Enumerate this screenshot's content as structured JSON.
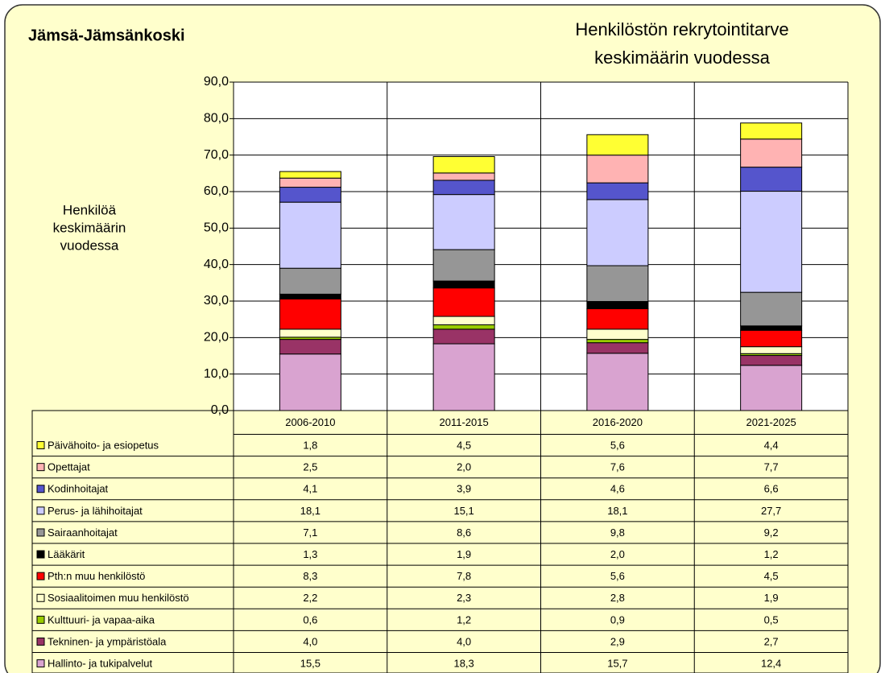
{
  "chart_data": {
    "type": "stacked_bar",
    "title": "Jämsä-Jämsänkoski",
    "subtitle": [
      "Henkilöstön rekrytointitarve",
      "keskimäärin vuodessa"
    ],
    "ylabel": [
      "Henkilöä",
      "keskimäärin",
      "vuodessa"
    ],
    "categories": [
      "2006-2010",
      "2011-2015",
      "2016-2020",
      "2021-2025"
    ],
    "ylim": [
      0,
      90
    ],
    "yticks": [
      {
        "value": 0,
        "label": "0,0"
      },
      {
        "value": 10,
        "label": "10,0"
      },
      {
        "value": 20,
        "label": "20,0"
      },
      {
        "value": 30,
        "label": "30,0"
      },
      {
        "value": 40,
        "label": "40,0"
      },
      {
        "value": 50,
        "label": "50,0"
      },
      {
        "value": 60,
        "label": "60,0"
      },
      {
        "value": 70,
        "label": "70,0"
      },
      {
        "value": 80,
        "label": "80,0"
      },
      {
        "value": 90,
        "label": "90,0"
      }
    ],
    "grid": true,
    "series": [
      {
        "name": "Päivähoito- ja esiopetus",
        "color": "#ffff33",
        "values": [
          1.8,
          4.5,
          5.6,
          4.4
        ],
        "value_labels": [
          "1,8",
          "4,5",
          "5,6",
          "4,4"
        ]
      },
      {
        "name": "Opettajat",
        "color": "#ffb3b3",
        "values": [
          2.5,
          2.0,
          7.6,
          7.7
        ],
        "value_labels": [
          "2,5",
          "2,0",
          "7,6",
          "7,7"
        ]
      },
      {
        "name": "Kodinhoitajat",
        "color": "#5555cc",
        "values": [
          4.1,
          3.9,
          4.6,
          6.6
        ],
        "value_labels": [
          "4,1",
          "3,9",
          "4,6",
          "6,6"
        ]
      },
      {
        "name": "Perus- ja lähihoitajat",
        "color": "#ccccff",
        "values": [
          18.1,
          15.1,
          18.1,
          27.7
        ],
        "value_labels": [
          "18,1",
          "15,1",
          "18,1",
          "27,7"
        ]
      },
      {
        "name": "Sairaanhoitajat",
        "color": "#969696",
        "values": [
          7.1,
          8.6,
          9.8,
          9.2
        ],
        "value_labels": [
          "7,1",
          "8,6",
          "9,8",
          "9,2"
        ]
      },
      {
        "name": "Lääkärit",
        "color": "#000000",
        "values": [
          1.3,
          1.9,
          2.0,
          1.2
        ],
        "value_labels": [
          "1,3",
          "1,9",
          "2,0",
          "1,2"
        ]
      },
      {
        "name": "Pth:n muu henkilöstö",
        "color": "#ff0000",
        "values": [
          8.3,
          7.8,
          5.6,
          4.5
        ],
        "value_labels": [
          "8,3",
          "7,8",
          "5,6",
          "4,5"
        ]
      },
      {
        "name": "Sosiaalitoimen muu henkilöstö",
        "color": "#ffffcc",
        "values": [
          2.2,
          2.3,
          2.8,
          1.9
        ],
        "value_labels": [
          "2,2",
          "2,3",
          "2,8",
          "1,9"
        ]
      },
      {
        "name": "Kulttuuri- ja vapaa-aika",
        "color": "#99cc00",
        "values": [
          0.6,
          1.2,
          0.9,
          0.5
        ],
        "value_labels": [
          "0,6",
          "1,2",
          "0,9",
          "0,5"
        ]
      },
      {
        "name": "Tekninen- ja ympäristöala",
        "color": "#993366",
        "values": [
          4.0,
          4.0,
          2.9,
          2.7
        ],
        "value_labels": [
          "4,0",
          "4,0",
          "2,9",
          "2,7"
        ]
      },
      {
        "name": "Hallinto- ja tukipalvelut",
        "color": "#d9a3d0",
        "values": [
          15.5,
          18.3,
          15.7,
          12.4
        ],
        "value_labels": [
          "15,5",
          "18,3",
          "15,7",
          "12,4"
        ]
      }
    ]
  }
}
